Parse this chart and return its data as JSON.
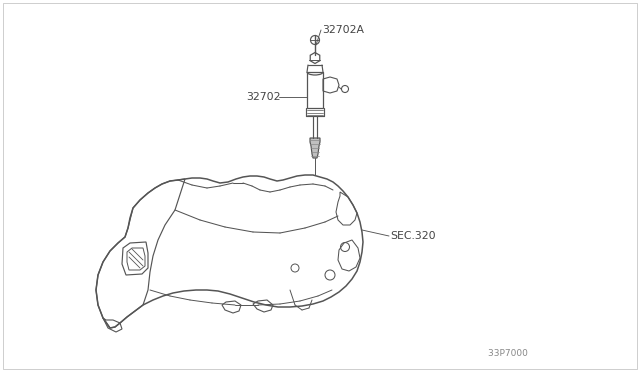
{
  "bg_color": "#ffffff",
  "line_color": "#555555",
  "text_color": "#444444",
  "figsize": [
    6.4,
    3.72
  ],
  "dpi": 100,
  "label_32702A": "32702A",
  "label_32702": "32702",
  "label_SEC320": "SEC.320",
  "label_partnum": "33P7000 ",
  "border_color": "#bbbbbb"
}
